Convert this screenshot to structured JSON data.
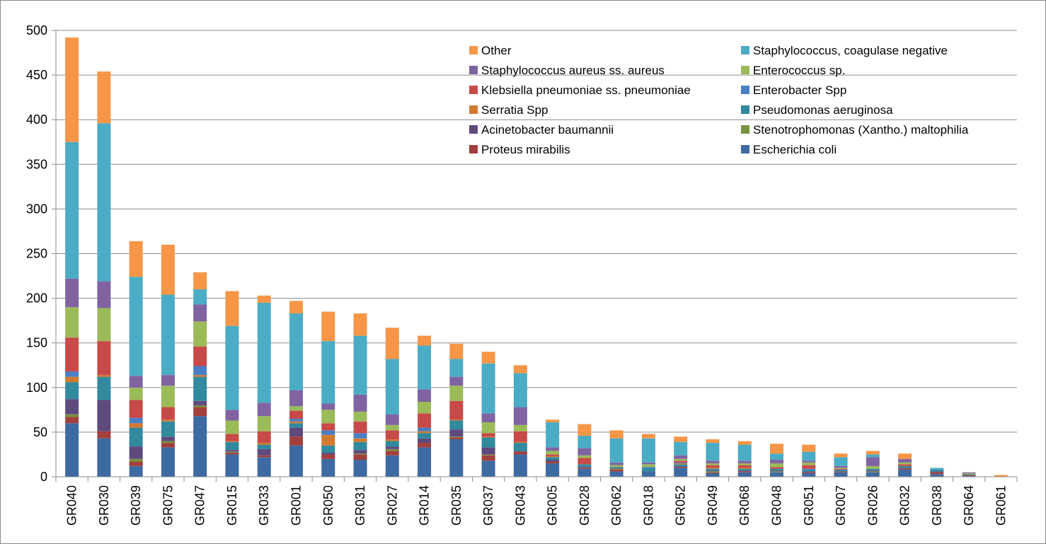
{
  "chart_data": {
    "type": "bar",
    "stacked": true,
    "ylim": [
      0,
      500
    ],
    "yticks": [
      0,
      50,
      100,
      150,
      200,
      250,
      300,
      350,
      400,
      450,
      500
    ],
    "grid": true,
    "legend_position": "top-right",
    "categories": [
      "GR040",
      "GR030",
      "GR039",
      "GR075",
      "GR047",
      "GR015",
      "GR033",
      "GR001",
      "GR050",
      "GR031",
      "GR027",
      "GR014",
      "GR035",
      "GR037",
      "GR043",
      "GR005",
      "GR028",
      "GR062",
      "GR018",
      "GR052",
      "GR049",
      "GR068",
      "GR048",
      "GR051",
      "GR007",
      "GR026",
      "GR032",
      "GR038",
      "GR064",
      "GR061"
    ],
    "series": [
      {
        "name": "Escherichia coli",
        "color": "#3e6aa3",
        "values": [
          60,
          43,
          12,
          33,
          68,
          25,
          22,
          35,
          20,
          19,
          24,
          33,
          42,
          18,
          25,
          15,
          9,
          6,
          6,
          10,
          4,
          5,
          5,
          4,
          5,
          5,
          8,
          3,
          1,
          0
        ]
      },
      {
        "name": "Proteus mirabilis",
        "color": "#a33f3c",
        "values": [
          7,
          8,
          5,
          5,
          10,
          2,
          2,
          10,
          5,
          6,
          5,
          5,
          2,
          6,
          3,
          2,
          1,
          2,
          0,
          1,
          1,
          1,
          0,
          1,
          1,
          0,
          1,
          2,
          1,
          0
        ]
      },
      {
        "name": "Stenotrophomonas (Xantho.) maltophilia",
        "color": "#789340",
        "values": [
          3,
          0,
          3,
          2,
          2,
          1,
          0,
          0,
          0,
          1,
          2,
          0,
          1,
          1,
          0,
          0,
          0,
          1,
          0,
          0,
          1,
          0,
          1,
          0,
          0,
          1,
          0,
          0,
          0,
          0
        ]
      },
      {
        "name": "Acinetobacter baumannii",
        "color": "#5f4a7e",
        "values": [
          17,
          35,
          14,
          5,
          5,
          2,
          7,
          10,
          2,
          4,
          3,
          5,
          8,
          8,
          1,
          2,
          1,
          1,
          0,
          1,
          1,
          1,
          1,
          1,
          0,
          1,
          1,
          1,
          0,
          0
        ]
      },
      {
        "name": "Pseudomonas aeruginosa",
        "color": "#318a9e",
        "values": [
          19,
          26,
          21,
          17,
          27,
          9,
          5,
          5,
          8,
          9,
          6,
          6,
          10,
          11,
          9,
          3,
          3,
          1,
          4,
          2,
          2,
          2,
          2,
          2,
          2,
          2,
          2,
          2,
          1,
          0
        ]
      },
      {
        "name": "Serratia Spp",
        "color": "#d27a30",
        "values": [
          6,
          2,
          5,
          2,
          2,
          1,
          2,
          2,
          12,
          4,
          2,
          2,
          1,
          1,
          1,
          1,
          0,
          0,
          0,
          1,
          1,
          1,
          0,
          0,
          0,
          0,
          0,
          0,
          0,
          0
        ]
      },
      {
        "name": "Enterobacter Spp",
        "color": "#4a7ec6",
        "values": [
          6,
          0,
          6,
          0,
          10,
          0,
          0,
          3,
          5,
          6,
          0,
          4,
          0,
          0,
          0,
          0,
          0,
          0,
          1,
          1,
          0,
          0,
          0,
          1,
          0,
          0,
          0,
          0,
          0,
          0
        ]
      },
      {
        "name": "Klebsiella pneumoniae ss. pneumoniae",
        "color": "#c84a48",
        "values": [
          38,
          38,
          20,
          14,
          22,
          8,
          13,
          9,
          8,
          13,
          10,
          16,
          21,
          4,
          12,
          2,
          7,
          0,
          0,
          2,
          3,
          3,
          2,
          4,
          1,
          0,
          2,
          0,
          0,
          0
        ]
      },
      {
        "name": "Enterococcus sp.",
        "color": "#9bbb59",
        "values": [
          34,
          37,
          14,
          24,
          28,
          15,
          17,
          5,
          15,
          11,
          6,
          13,
          17,
          12,
          7,
          4,
          3,
          2,
          3,
          2,
          2,
          2,
          4,
          3,
          1,
          3,
          2,
          0,
          1,
          0
        ]
      },
      {
        "name": "Staphylococcus aureus ss. aureus",
        "color": "#8064a2",
        "values": [
          32,
          30,
          13,
          12,
          19,
          12,
          15,
          18,
          7,
          19,
          12,
          14,
          10,
          10,
          20,
          4,
          8,
          3,
          2,
          4,
          3,
          3,
          4,
          2,
          2,
          10,
          4,
          0,
          1,
          0
        ]
      },
      {
        "name": "Staphylococcus, coagulase negative",
        "color": "#4bacc6",
        "values": [
          153,
          177,
          111,
          90,
          17,
          94,
          112,
          86,
          70,
          66,
          62,
          49,
          20,
          56,
          38,
          28,
          14,
          27,
          27,
          15,
          20,
          18,
          7,
          10,
          10,
          3,
          0,
          2,
          0,
          0
        ]
      },
      {
        "name": "Other",
        "color": "#f79646",
        "values": [
          117,
          58,
          40,
          56,
          19,
          39,
          8,
          14,
          33,
          25,
          35,
          11,
          17,
          13,
          9,
          3,
          13,
          9,
          5,
          6,
          4,
          4,
          11,
          8,
          4,
          4,
          6,
          0,
          0,
          2
        ]
      }
    ],
    "legend": {
      "entries": [
        {
          "label": "Other",
          "color": "#f79646"
        },
        {
          "label": "Staphylococcus, coagulase negative",
          "color": "#4bacc6"
        },
        {
          "label": "Staphylococcus aureus ss. aureus",
          "color": "#8064a2"
        },
        {
          "label": "Enterococcus sp.",
          "color": "#9bbb59"
        },
        {
          "label": "Klebsiella pneumoniae ss. pneumoniae",
          "color": "#c84a48"
        },
        {
          "label": "Enterobacter Spp",
          "color": "#4a7ec6"
        },
        {
          "label": "Serratia Spp",
          "color": "#d27a30"
        },
        {
          "label": "Pseudomonas aeruginosa",
          "color": "#318a9e"
        },
        {
          "label": "Acinetobacter baumannii",
          "color": "#5f4a7e"
        },
        {
          "label": "Stenotrophomonas (Xantho.) maltophilia",
          "color": "#789340"
        },
        {
          "label": "Proteus mirabilis",
          "color": "#a33f3c"
        },
        {
          "label": "Escherichia coli",
          "color": "#3e6aa3"
        }
      ]
    }
  }
}
